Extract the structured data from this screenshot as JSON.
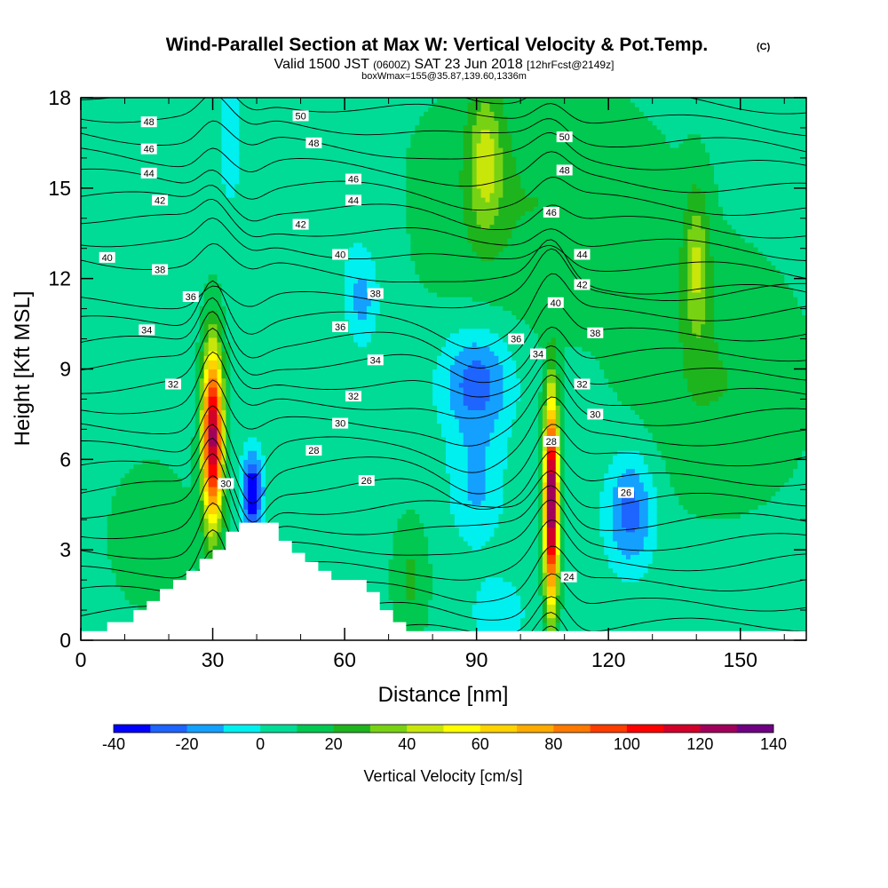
{
  "header": {
    "title": "Wind-Parallel Section at Max W: Vertical Velocity & Pot.Temp.",
    "copyright": "(C)",
    "valid_prefix": "Valid 1500 JST",
    "valid_utc": "(0600Z)",
    "valid_date": "SAT 23 Jun 2018",
    "forecast": "[12hrFcst@2149z]",
    "boxw": "boxWmax=155@35.87,139.60,1336m"
  },
  "chart_data": {
    "type": "heatmap",
    "xlabel": "Distance [nm]",
    "ylabel": "Height [Kft MSL]",
    "xlim": [
      0,
      165
    ],
    "ylim": [
      0,
      18
    ],
    "xticks": [
      "0",
      "30",
      "60",
      "90",
      "120",
      "150"
    ],
    "yticks": [
      "0",
      "3",
      "6",
      "9",
      "12",
      "15",
      "18"
    ],
    "xtick_values": [
      0,
      30,
      60,
      90,
      120,
      150
    ],
    "ytick_values": [
      0,
      3,
      6,
      9,
      12,
      15,
      18
    ],
    "colorbar": {
      "label": "Vertical Velocity [cm/s]",
      "levels": [
        -40,
        -30,
        -20,
        -10,
        0,
        10,
        20,
        30,
        40,
        50,
        60,
        70,
        80,
        90,
        100,
        110,
        120,
        130,
        140
      ],
      "tick_labels": [
        "-40",
        "-20",
        "0",
        "20",
        "40",
        "60",
        "80",
        "100",
        "120",
        "140"
      ],
      "tick_values": [
        -40,
        -20,
        0,
        20,
        40,
        60,
        80,
        100,
        120,
        140
      ],
      "colors": [
        "#0000ff",
        "#1e64ff",
        "#14a0ff",
        "#00f0f0",
        "#00dc96",
        "#00c850",
        "#1eb41e",
        "#78d214",
        "#c8e60a",
        "#ffff00",
        "#ffd200",
        "#ffaa00",
        "#ff7800",
        "#ff3c00",
        "#ff0000",
        "#d20028",
        "#a0005a",
        "#6e0082"
      ]
    },
    "terrain": [
      [
        0,
        0.3
      ],
      [
        6,
        0.3
      ],
      [
        6,
        0.6
      ],
      [
        12,
        0.6
      ],
      [
        12,
        1.0
      ],
      [
        15,
        1.0
      ],
      [
        15,
        1.3
      ],
      [
        18,
        1.3
      ],
      [
        18,
        1.7
      ],
      [
        21,
        1.7
      ],
      [
        21,
        2.0
      ],
      [
        24,
        2.0
      ],
      [
        24,
        2.3
      ],
      [
        27,
        2.3
      ],
      [
        27,
        2.7
      ],
      [
        30,
        2.7
      ],
      [
        30,
        3.0
      ],
      [
        33,
        3.0
      ],
      [
        33,
        3.6
      ],
      [
        36,
        3.6
      ],
      [
        36,
        3.9
      ],
      [
        45,
        3.9
      ],
      [
        45,
        3.3
      ],
      [
        48,
        3.3
      ],
      [
        48,
        2.9
      ],
      [
        51,
        2.9
      ],
      [
        51,
        2.6
      ],
      [
        54,
        2.6
      ],
      [
        54,
        2.3
      ],
      [
        57,
        2.3
      ],
      [
        57,
        2.0
      ],
      [
        65,
        2.0
      ],
      [
        65,
        1.6
      ],
      [
        68,
        1.6
      ],
      [
        68,
        1.0
      ],
      [
        71,
        1.0
      ],
      [
        71,
        0.6
      ],
      [
        74,
        0.6
      ],
      [
        74,
        0.3
      ],
      [
        165,
        0.3
      ]
    ],
    "w_features": [
      {
        "x": 30,
        "y": 6.8,
        "sx": 2.3,
        "sy": 2.9,
        "amp": 120
      },
      {
        "x": 107,
        "y": 4.6,
        "sx": 1.6,
        "sy": 3.4,
        "amp": 135
      },
      {
        "x": 39,
        "y": 4.9,
        "sx": 2.4,
        "sy": 1.3,
        "amp": -48
      },
      {
        "x": 90,
        "y": 8.6,
        "sx": 8.0,
        "sy": 1.7,
        "amp": -32
      },
      {
        "x": 90,
        "y": 5.2,
        "sx": 6.0,
        "sy": 2.0,
        "amp": -18
      },
      {
        "x": 125,
        "y": 4.3,
        "sx": 5.5,
        "sy": 1.9,
        "amp": -32
      },
      {
        "x": 64,
        "y": 11.3,
        "sx": 3.5,
        "sy": 1.4,
        "amp": -20
      },
      {
        "x": 34,
        "y": 16.8,
        "sx": 2.5,
        "sy": 2.2,
        "amp": -15
      },
      {
        "x": 92,
        "y": 16.0,
        "sx": 4.0,
        "sy": 2.5,
        "amp": 30
      },
      {
        "x": 140,
        "y": 12.5,
        "sx": 3.0,
        "sy": 2.5,
        "amp": 30
      },
      {
        "x": 103,
        "y": 14.5,
        "sx": 30.0,
        "sy": 4.0,
        "amp": 14
      },
      {
        "x": 145,
        "y": 8.5,
        "sx": 20.0,
        "sy": 4.0,
        "amp": 14
      },
      {
        "x": 16,
        "y": 3.5,
        "sx": 12.0,
        "sy": 3.0,
        "amp": 8
      },
      {
        "x": 75,
        "y": 2.0,
        "sx": 4.0,
        "sy": 2.0,
        "amp": 16
      },
      {
        "x": 60,
        "y": 14.0,
        "sx": 12.0,
        "sy": 2.5,
        "amp": -6
      },
      {
        "x": 95,
        "y": 0.9,
        "sx": 6.0,
        "sy": 1.2,
        "amp": -14
      }
    ],
    "theta_labels": [
      {
        "x": 15.5,
        "y": 17.2,
        "text": "48"
      },
      {
        "x": 15.5,
        "y": 16.3,
        "text": "46"
      },
      {
        "x": 15.5,
        "y": 15.5,
        "text": "44"
      },
      {
        "x": 18,
        "y": 14.6,
        "text": "42"
      },
      {
        "x": 6,
        "y": 12.7,
        "text": "40"
      },
      {
        "x": 18,
        "y": 12.3,
        "text": "38"
      },
      {
        "x": 25,
        "y": 11.4,
        "text": "36"
      },
      {
        "x": 15,
        "y": 10.3,
        "text": "34"
      },
      {
        "x": 21,
        "y": 8.5,
        "text": "32"
      },
      {
        "x": 33,
        "y": 5.2,
        "text": "30"
      },
      {
        "x": 50,
        "y": 17.4,
        "text": "50"
      },
      {
        "x": 53,
        "y": 16.5,
        "text": "48"
      },
      {
        "x": 62,
        "y": 15.3,
        "text": "46"
      },
      {
        "x": 62,
        "y": 14.6,
        "text": "44"
      },
      {
        "x": 50,
        "y": 13.8,
        "text": "42"
      },
      {
        "x": 59,
        "y": 12.8,
        "text": "40"
      },
      {
        "x": 67,
        "y": 11.5,
        "text": "38"
      },
      {
        "x": 59,
        "y": 10.4,
        "text": "36"
      },
      {
        "x": 67,
        "y": 9.3,
        "text": "34"
      },
      {
        "x": 62,
        "y": 8.1,
        "text": "32"
      },
      {
        "x": 59,
        "y": 7.2,
        "text": "30"
      },
      {
        "x": 53,
        "y": 6.3,
        "text": "28"
      },
      {
        "x": 65,
        "y": 5.3,
        "text": "26"
      },
      {
        "x": 110,
        "y": 16.7,
        "text": "50"
      },
      {
        "x": 110,
        "y": 15.6,
        "text": "48"
      },
      {
        "x": 107,
        "y": 14.2,
        "text": "46"
      },
      {
        "x": 114,
        "y": 12.8,
        "text": "44"
      },
      {
        "x": 114,
        "y": 11.8,
        "text": "42"
      },
      {
        "x": 108,
        "y": 11.2,
        "text": "40"
      },
      {
        "x": 117,
        "y": 10.2,
        "text": "38"
      },
      {
        "x": 99,
        "y": 10.0,
        "text": "36"
      },
      {
        "x": 104,
        "y": 9.5,
        "text": "34"
      },
      {
        "x": 114,
        "y": 8.5,
        "text": "32"
      },
      {
        "x": 117,
        "y": 7.5,
        "text": "30"
      },
      {
        "x": 107,
        "y": 6.6,
        "text": "28"
      },
      {
        "x": 124,
        "y": 4.9,
        "text": "26"
      },
      {
        "x": 111,
        "y": 2.1,
        "text": "24"
      }
    ]
  }
}
